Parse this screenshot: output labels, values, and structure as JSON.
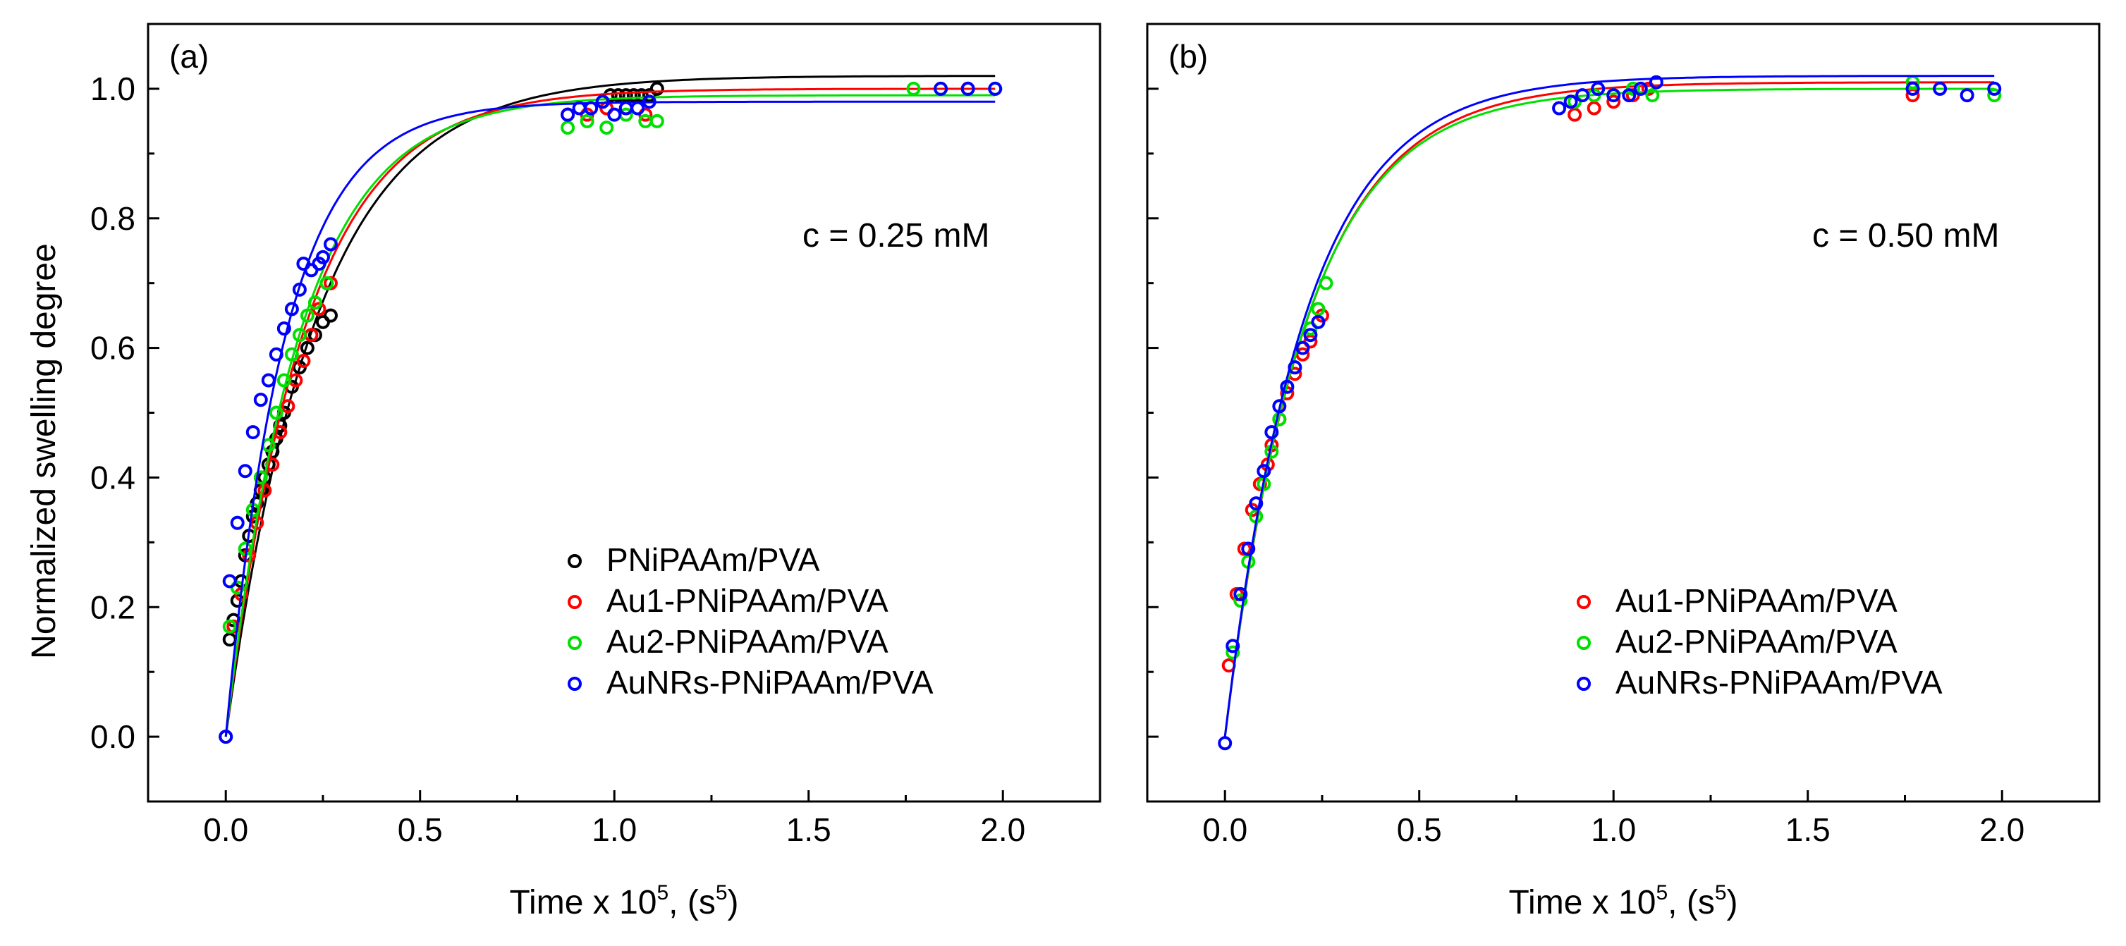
{
  "figure": {
    "ylabel": "Normalized swelling degree",
    "xlabel_main": "Time x 10",
    "xlabel_sup": "5",
    "xlabel_after": ", (s",
    "xlabel_sup2": "5",
    "xlabel_end": ")"
  },
  "chart_data": [
    {
      "type": "scatter",
      "panel": "(a)",
      "annotation": "c = 0.25 mM",
      "xlabel": "Time x 10^5, (s^5)",
      "ylabel": "Normalized swelling degree",
      "xlim": [
        -0.2,
        2.25
      ],
      "ylim": [
        -0.1,
        1.1
      ],
      "xticks": [
        "0.0",
        "0.5",
        "1.0",
        "1.5",
        "2.0"
      ],
      "yticks": [
        "0.0",
        "0.2",
        "0.4",
        "0.6",
        "0.8",
        "1.0"
      ],
      "legend_position": "lower-right",
      "series": [
        {
          "name": "PNiPAAm/PVA",
          "color": "#000000",
          "fit": {
            "k": 4.3,
            "amp": 1.02,
            "base": 0.0
          },
          "points": [
            [
              0.0,
              0.0
            ],
            [
              0.01,
              0.15
            ],
            [
              0.02,
              0.18
            ],
            [
              0.03,
              0.21
            ],
            [
              0.04,
              0.24
            ],
            [
              0.05,
              0.28
            ],
            [
              0.06,
              0.31
            ],
            [
              0.07,
              0.34
            ],
            [
              0.08,
              0.36
            ],
            [
              0.09,
              0.38
            ],
            [
              0.1,
              0.4
            ],
            [
              0.11,
              0.42
            ],
            [
              0.12,
              0.44
            ],
            [
              0.13,
              0.46
            ],
            [
              0.14,
              0.48
            ],
            [
              0.15,
              0.5
            ],
            [
              0.17,
              0.54
            ],
            [
              0.19,
              0.57
            ],
            [
              0.21,
              0.6
            ],
            [
              0.23,
              0.62
            ],
            [
              0.25,
              0.64
            ],
            [
              0.27,
              0.65
            ],
            [
              0.97,
              0.98
            ],
            [
              0.99,
              0.99
            ],
            [
              1.01,
              0.99
            ],
            [
              1.03,
              0.99
            ],
            [
              1.05,
              0.99
            ],
            [
              1.07,
              0.99
            ],
            [
              1.09,
              0.99
            ],
            [
              1.11,
              1.0
            ]
          ]
        },
        {
          "name": "Au1-PNiPAAm/PVA",
          "color": "#ff0000",
          "fit": {
            "k": 4.9,
            "amp": 1.0,
            "base": 0.0
          },
          "points": [
            [
              0.02,
              0.17
            ],
            [
              0.04,
              0.22
            ],
            [
              0.06,
              0.28
            ],
            [
              0.08,
              0.33
            ],
            [
              0.1,
              0.38
            ],
            [
              0.12,
              0.42
            ],
            [
              0.14,
              0.47
            ],
            [
              0.16,
              0.51
            ],
            [
              0.18,
              0.55
            ],
            [
              0.2,
              0.58
            ],
            [
              0.22,
              0.62
            ],
            [
              0.24,
              0.66
            ],
            [
              0.27,
              0.7
            ],
            [
              0.88,
              0.96
            ],
            [
              0.93,
              0.96
            ],
            [
              0.98,
              0.97
            ],
            [
              1.03,
              0.97
            ],
            [
              1.08,
              0.96
            ],
            [
              1.91,
              1.0
            ]
          ]
        },
        {
          "name": "Au2-PNiPAAm/PVA",
          "color": "#00e000",
          "fit": {
            "k": 5.2,
            "amp": 0.99,
            "base": 0.0
          },
          "points": [
            [
              0.01,
              0.17
            ],
            [
              0.03,
              0.23
            ],
            [
              0.05,
              0.29
            ],
            [
              0.07,
              0.35
            ],
            [
              0.09,
              0.4
            ],
            [
              0.11,
              0.45
            ],
            [
              0.13,
              0.5
            ],
            [
              0.15,
              0.55
            ],
            [
              0.17,
              0.59
            ],
            [
              0.19,
              0.62
            ],
            [
              0.21,
              0.65
            ],
            [
              0.23,
              0.67
            ],
            [
              0.26,
              0.7
            ],
            [
              0.88,
              0.94
            ],
            [
              0.93,
              0.95
            ],
            [
              0.98,
              0.94
            ],
            [
              1.03,
              0.96
            ],
            [
              1.08,
              0.95
            ],
            [
              1.11,
              0.95
            ],
            [
              1.77,
              1.0
            ],
            [
              1.84,
              1.0
            ],
            [
              1.98,
              1.0
            ]
          ]
        },
        {
          "name": "AuNRs-PNiPAAm/PVA",
          "color": "#0000ff",
          "fit": {
            "k": 6.5,
            "amp": 0.98,
            "base": 0.0
          },
          "points": [
            [
              0.0,
              0.0
            ],
            [
              0.01,
              0.24
            ],
            [
              0.03,
              0.33
            ],
            [
              0.05,
              0.41
            ],
            [
              0.07,
              0.47
            ],
            [
              0.09,
              0.52
            ],
            [
              0.11,
              0.55
            ],
            [
              0.13,
              0.59
            ],
            [
              0.15,
              0.63
            ],
            [
              0.17,
              0.66
            ],
            [
              0.19,
              0.69
            ],
            [
              0.2,
              0.73
            ],
            [
              0.22,
              0.72
            ],
            [
              0.24,
              0.73
            ],
            [
              0.25,
              0.74
            ],
            [
              0.27,
              0.76
            ],
            [
              0.88,
              0.96
            ],
            [
              0.91,
              0.97
            ],
            [
              0.94,
              0.97
            ],
            [
              0.97,
              0.98
            ],
            [
              1.0,
              0.96
            ],
            [
              1.03,
              0.97
            ],
            [
              1.06,
              0.97
            ],
            [
              1.09,
              0.98
            ],
            [
              1.84,
              1.0
            ],
            [
              1.91,
              1.0
            ],
            [
              1.98,
              1.0
            ]
          ]
        }
      ]
    },
    {
      "type": "scatter",
      "panel": "(b)",
      "annotation": "c = 0.50 mM",
      "xlabel": "Time x 10^5, (s^5)",
      "ylabel": "",
      "xlim": [
        -0.2,
        2.25
      ],
      "ylim": [
        -0.1,
        1.1
      ],
      "xticks": [
        "0.0",
        "0.5",
        "1.0",
        "1.5",
        "2.0"
      ],
      "yticks": [],
      "legend_position": "lower-right",
      "series": [
        {
          "name": "Au1-PNiPAAm/PVA",
          "color": "#ff0000",
          "fit": {
            "k": 4.8,
            "amp": 1.01,
            "base": 0.0
          },
          "points": [
            [
              0.01,
              0.11
            ],
            [
              0.03,
              0.22
            ],
            [
              0.05,
              0.29
            ],
            [
              0.07,
              0.35
            ],
            [
              0.09,
              0.39
            ],
            [
              0.11,
              0.42
            ],
            [
              0.12,
              0.45
            ],
            [
              0.14,
              0.49
            ],
            [
              0.16,
              0.53
            ],
            [
              0.18,
              0.56
            ],
            [
              0.2,
              0.59
            ],
            [
              0.22,
              0.61
            ],
            [
              0.25,
              0.65
            ],
            [
              0.9,
              0.96
            ],
            [
              0.95,
              0.97
            ],
            [
              1.0,
              0.98
            ],
            [
              1.05,
              0.99
            ],
            [
              1.09,
              1.0
            ],
            [
              1.77,
              0.99
            ]
          ]
        },
        {
          "name": "Au2-PNiPAAm/PVA",
          "color": "#00e000",
          "fit": {
            "k": 4.9,
            "amp": 1.0,
            "base": 0.0
          },
          "points": [
            [
              0.02,
              0.13
            ],
            [
              0.04,
              0.21
            ],
            [
              0.06,
              0.27
            ],
            [
              0.08,
              0.34
            ],
            [
              0.1,
              0.39
            ],
            [
              0.12,
              0.44
            ],
            [
              0.14,
              0.49
            ],
            [
              0.16,
              0.54
            ],
            [
              0.18,
              0.57
            ],
            [
              0.2,
              0.6
            ],
            [
              0.22,
              0.63
            ],
            [
              0.24,
              0.66
            ],
            [
              0.26,
              0.7
            ],
            [
              0.9,
              0.98
            ],
            [
              0.95,
              0.99
            ],
            [
              1.0,
              0.99
            ],
            [
              1.05,
              1.0
            ],
            [
              1.1,
              0.99
            ],
            [
              1.77,
              1.01
            ],
            [
              1.98,
              0.99
            ]
          ]
        },
        {
          "name": "AuNRs-PNiPAAm/PVA",
          "color": "#0000ff",
          "fit": {
            "k": 4.9,
            "amp": 1.02,
            "base": 0.0
          },
          "points": [
            [
              0.0,
              -0.01
            ],
            [
              0.02,
              0.14
            ],
            [
              0.04,
              0.22
            ],
            [
              0.06,
              0.29
            ],
            [
              0.08,
              0.36
            ],
            [
              0.1,
              0.41
            ],
            [
              0.12,
              0.47
            ],
            [
              0.14,
              0.51
            ],
            [
              0.16,
              0.54
            ],
            [
              0.18,
              0.57
            ],
            [
              0.2,
              0.6
            ],
            [
              0.22,
              0.62
            ],
            [
              0.24,
              0.64
            ],
            [
              0.86,
              0.97
            ],
            [
              0.89,
              0.98
            ],
            [
              0.92,
              0.99
            ],
            [
              0.96,
              1.0
            ],
            [
              1.0,
              0.99
            ],
            [
              1.04,
              0.99
            ],
            [
              1.07,
              1.0
            ],
            [
              1.11,
              1.01
            ],
            [
              1.77,
              1.0
            ],
            [
              1.84,
              1.0
            ],
            [
              1.91,
              0.99
            ],
            [
              1.98,
              1.0
            ]
          ]
        }
      ]
    }
  ]
}
